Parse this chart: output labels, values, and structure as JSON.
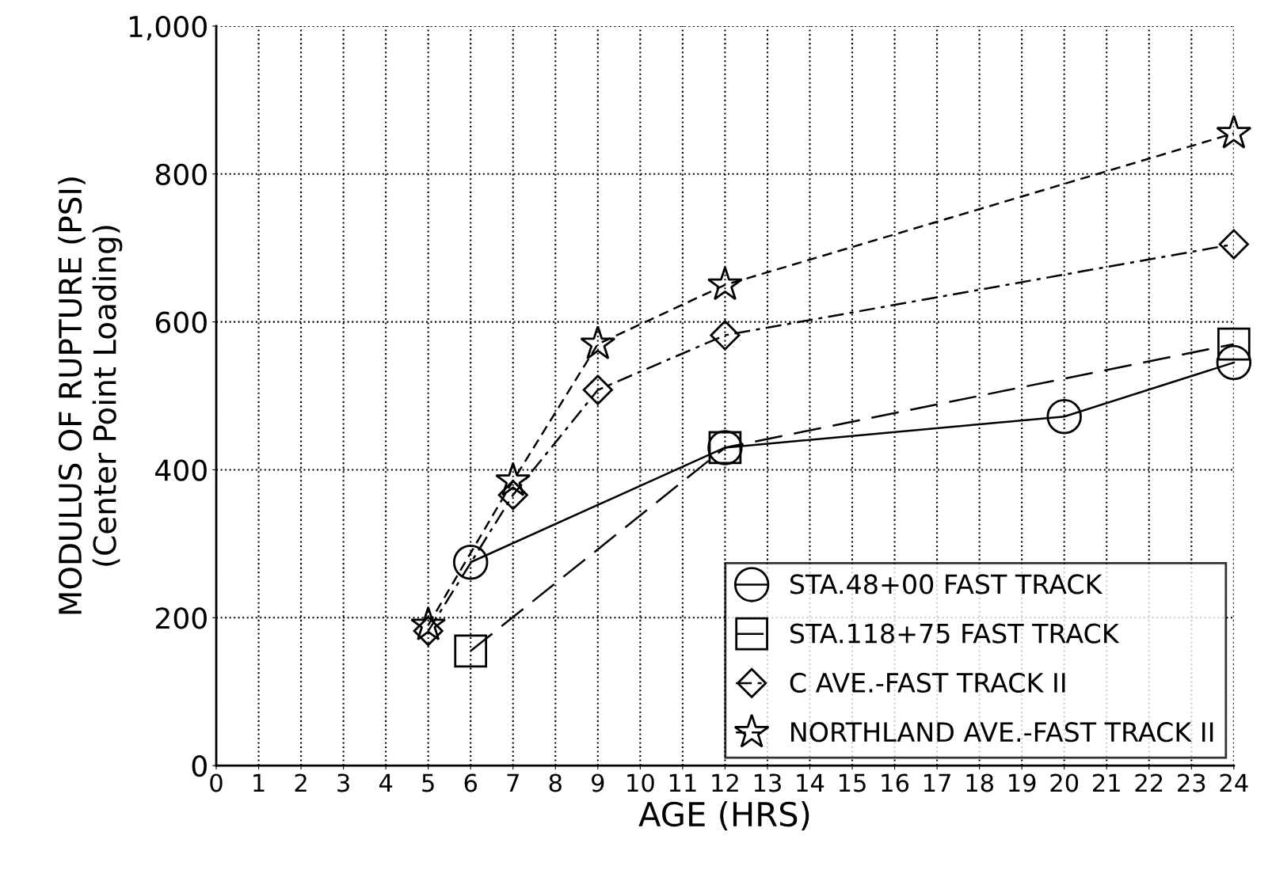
{
  "chart_data": {
    "type": "line",
    "xlabel": "AGE (HRS)",
    "ylabel": "MODULUS OF RUPTURE (PSI)\n(Center Point Loading)",
    "xlim": [
      0,
      24
    ],
    "xticks": [
      0,
      1,
      2,
      3,
      4,
      5,
      6,
      7,
      8,
      9,
      10,
      11,
      12,
      13,
      14,
      15,
      16,
      17,
      18,
      19,
      20,
      21,
      22,
      23,
      24
    ],
    "ylim": [
      0,
      1000
    ],
    "yticks": [
      0,
      200,
      400,
      600,
      800,
      {
        "value": 1000,
        "label": "1,000"
      }
    ],
    "grid": true,
    "legend": "bottom right",
    "series": [
      {
        "name": "STA.48+00 FAST TRACK",
        "color": "#000000",
        "marker": "circle",
        "line_style": "solid",
        "x": [
          6,
          12,
          20,
          24
        ],
        "values": [
          275,
          430,
          472,
          545
        ]
      },
      {
        "name": "STA.118+75 FAST TRACK",
        "color": "#000000",
        "marker": "square",
        "line_style": "longdash",
        "x": [
          6,
          12,
          24
        ],
        "values": [
          155,
          430,
          570
        ]
      },
      {
        "name": "C AVE.-FAST TRACK II",
        "color": "#000000",
        "marker": "diamond",
        "line_style": "dashdot",
        "x": [
          5,
          7,
          9,
          12,
          24
        ],
        "values": [
          182,
          366,
          508,
          582,
          705
        ]
      },
      {
        "name": "NORTHLAND AVE.-FAST TRACK II",
        "color": "#000000",
        "marker": "star",
        "line_style": "dashed",
        "x": [
          5,
          7,
          9,
          12,
          24
        ],
        "values": [
          190,
          385,
          570,
          650,
          855
        ]
      }
    ]
  }
}
